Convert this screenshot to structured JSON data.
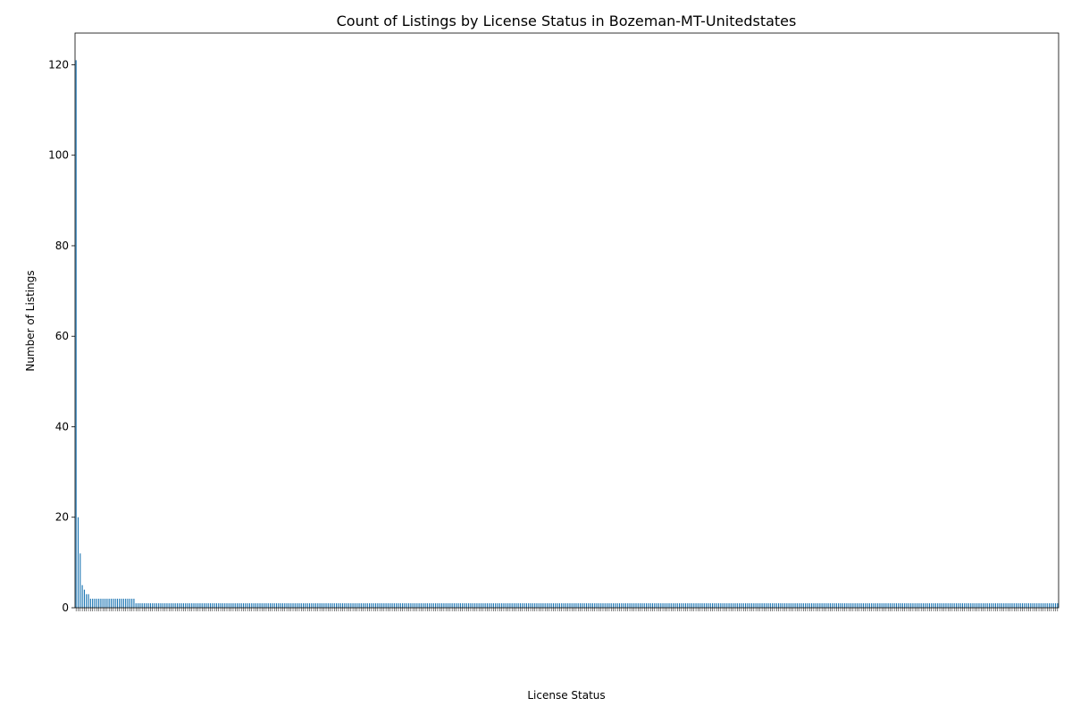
{
  "chart_data": {
    "type": "bar",
    "title": "Count of Listings by License Status in Bozeman-MT-Unitedstates",
    "xlabel": "License Status",
    "ylabel": "Number of Listings",
    "ylim": [
      0,
      127
    ],
    "yticks": [
      0,
      20,
      40,
      60,
      80,
      100,
      120
    ],
    "grid": false,
    "legend": "none",
    "bar_color": "#1f77b4",
    "categories_note": "Category tick labels are overlapping and illegible in the original; individual category names cannot be read.",
    "values": [
      121,
      20,
      12,
      5,
      4,
      3,
      3,
      2,
      2,
      2,
      2,
      2,
      2,
      2,
      2,
      2,
      2,
      2,
      2,
      2,
      2,
      2,
      2,
      2,
      2,
      2,
      2,
      2,
      2,
      1,
      1,
      1,
      1,
      1,
      1,
      1,
      1,
      1,
      1,
      1,
      1,
      1,
      1,
      1,
      1,
      1,
      1,
      1,
      1,
      1,
      1,
      1,
      1,
      1,
      1,
      1,
      1,
      1,
      1,
      1,
      1,
      1,
      1,
      1,
      1,
      1,
      1,
      1,
      1,
      1,
      1,
      1,
      1,
      1,
      1,
      1,
      1,
      1,
      1,
      1,
      1,
      1,
      1,
      1,
      1,
      1,
      1,
      1,
      1,
      1,
      1,
      1,
      1,
      1,
      1,
      1,
      1,
      1,
      1,
      1,
      1,
      1,
      1,
      1,
      1,
      1,
      1,
      1,
      1,
      1,
      1,
      1,
      1,
      1,
      1,
      1,
      1,
      1,
      1,
      1,
      1,
      1,
      1,
      1,
      1,
      1,
      1,
      1,
      1,
      1,
      1,
      1,
      1,
      1,
      1,
      1,
      1,
      1,
      1,
      1,
      1,
      1,
      1,
      1,
      1,
      1,
      1,
      1,
      1,
      1,
      1,
      1,
      1,
      1,
      1,
      1,
      1,
      1,
      1,
      1,
      1,
      1,
      1,
      1,
      1,
      1,
      1,
      1,
      1,
      1,
      1,
      1,
      1,
      1,
      1,
      1,
      1,
      1,
      1,
      1,
      1,
      1,
      1,
      1,
      1,
      1,
      1,
      1,
      1,
      1,
      1,
      1,
      1,
      1,
      1,
      1,
      1,
      1,
      1,
      1,
      1,
      1,
      1,
      1,
      1,
      1,
      1,
      1,
      1,
      1,
      1,
      1,
      1,
      1,
      1,
      1,
      1,
      1,
      1,
      1,
      1,
      1,
      1,
      1,
      1,
      1,
      1,
      1,
      1,
      1,
      1,
      1,
      1,
      1,
      1,
      1,
      1,
      1,
      1,
      1,
      1,
      1,
      1,
      1,
      1,
      1,
      1,
      1,
      1,
      1,
      1,
      1,
      1,
      1,
      1,
      1,
      1,
      1,
      1,
      1,
      1,
      1,
      1,
      1,
      1,
      1,
      1,
      1,
      1,
      1,
      1,
      1,
      1,
      1,
      1,
      1,
      1,
      1,
      1,
      1,
      1,
      1,
      1,
      1,
      1,
      1,
      1,
      1,
      1,
      1,
      1,
      1,
      1,
      1,
      1,
      1,
      1,
      1,
      1,
      1,
      1,
      1,
      1,
      1,
      1,
      1,
      1,
      1,
      1,
      1,
      1,
      1,
      1,
      1,
      1,
      1,
      1,
      1,
      1,
      1,
      1,
      1,
      1,
      1,
      1,
      1,
      1,
      1,
      1,
      1,
      1,
      1,
      1,
      1,
      1,
      1,
      1,
      1,
      1,
      1,
      1,
      1,
      1,
      1,
      1,
      1,
      1,
      1,
      1,
      1,
      1,
      1,
      1,
      1,
      1,
      1,
      1,
      1,
      1,
      1,
      1,
      1,
      1,
      1,
      1,
      1,
      1,
      1,
      1,
      1,
      1,
      1,
      1,
      1,
      1,
      1,
      1,
      1,
      1,
      1,
      1,
      1,
      1,
      1,
      1,
      1,
      1,
      1,
      1,
      1,
      1,
      1,
      1,
      1,
      1,
      1,
      1,
      1,
      1,
      1,
      1,
      1,
      1,
      1,
      1,
      1,
      1,
      1,
      1,
      1,
      1,
      1,
      1,
      1,
      1,
      1,
      1,
      1,
      1,
      1,
      1,
      1,
      1,
      1,
      1,
      1,
      1,
      1,
      1,
      1,
      1,
      1,
      1,
      1,
      1,
      1,
      1,
      1,
      1,
      1,
      1,
      1,
      1,
      1,
      1,
      1,
      1,
      1,
      1,
      1,
      1,
      1,
      1,
      1,
      1,
      1,
      1,
      1,
      1,
      1,
      1,
      1,
      1,
      1,
      1,
      1,
      1,
      1,
      1,
      1,
      1,
      1,
      1,
      1,
      1,
      1
    ]
  }
}
